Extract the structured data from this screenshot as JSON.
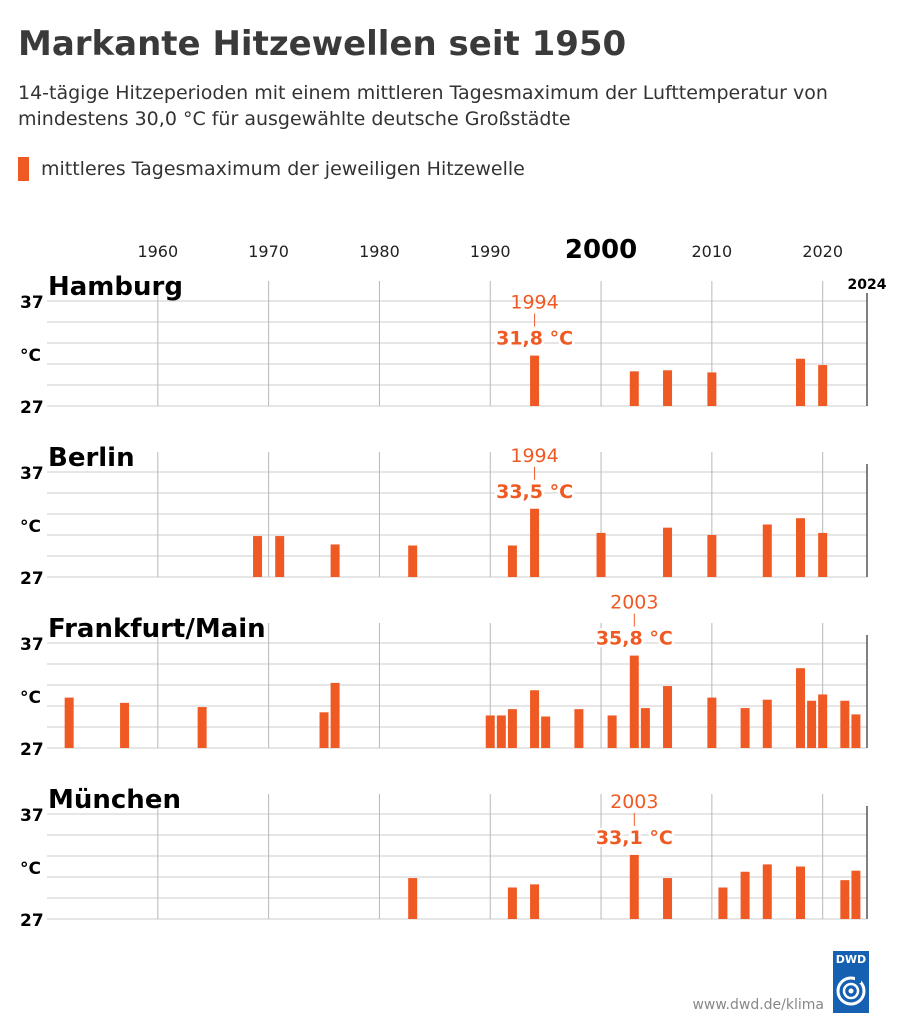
{
  "title": "Markante Hitzewellen seit 1950",
  "subtitle": "14-tägige Hitzeperioden mit einem mittleren Tagesmaximum der Lufttemperatur von mindestens 30,0 °C für ausgewählte deutsche Großstädte",
  "legend_label": "mittleres Tagesmaximum der jeweiligen Hitzewelle",
  "source": "www.dwd.de/klima",
  "logo_text": "DWD",
  "colors": {
    "bar": "#ef5a24",
    "text": "#333333",
    "grid": "#cccccc",
    "logo": "#1560b1"
  },
  "chart_data": {
    "type": "bar",
    "xlim": [
      1950,
      2024
    ],
    "x_ticks": [
      1960,
      1970,
      1980,
      1990,
      2000,
      2010,
      2020
    ],
    "x_tick_labels": [
      "1960",
      "1970",
      "1980",
      "1990",
      "2000",
      "2010",
      "2020"
    ],
    "x_end_label": "2024",
    "ylim": [
      27,
      37
    ],
    "y_labels": {
      "top": "37",
      "middle": "°C",
      "bottom": "27"
    },
    "panels": [
      {
        "city": "Hamburg",
        "years": [
          1994,
          2003,
          2006,
          2010,
          2018,
          2020
        ],
        "values": [
          31.8,
          30.3,
          30.4,
          30.2,
          31.5,
          30.9
        ],
        "highlight": {
          "year": 1994,
          "year_label": "1994",
          "value_label": "31,8 °C"
        }
      },
      {
        "city": "Berlin",
        "years": [
          1969,
          1971,
          1976,
          1983,
          1992,
          1994,
          2000,
          2006,
          2010,
          2015,
          2018,
          2020
        ],
        "values": [
          30.9,
          30.9,
          30.1,
          30.0,
          30.0,
          33.5,
          31.2,
          31.7,
          31.0,
          32.0,
          32.6,
          31.2
        ],
        "highlight": {
          "year": 1994,
          "year_label": "1994",
          "value_label": "33,5 °C"
        }
      },
      {
        "city": "Frankfurt/Main",
        "years": [
          1952,
          1957,
          1964,
          1975,
          1976,
          1990,
          1991,
          1992,
          1994,
          1995,
          1998,
          2001,
          2003,
          2004,
          2006,
          2010,
          2013,
          2015,
          2018,
          2019,
          2020,
          2022,
          2023
        ],
        "values": [
          31.8,
          31.3,
          30.9,
          30.4,
          33.2,
          30.1,
          30.1,
          30.7,
          32.5,
          30.0,
          30.7,
          30.1,
          35.8,
          30.8,
          32.9,
          31.8,
          30.8,
          31.6,
          34.6,
          31.5,
          32.1,
          31.5,
          30.2
        ],
        "highlight": {
          "year": 2003,
          "year_label": "2003",
          "value_label": "35,8 °C"
        }
      },
      {
        "city": "München",
        "years": [
          1983,
          1992,
          1994,
          2003,
          2006,
          2011,
          2013,
          2015,
          2018,
          2022,
          2023
        ],
        "values": [
          30.9,
          30.0,
          30.3,
          33.1,
          30.9,
          30.0,
          31.5,
          32.2,
          32.0,
          30.7,
          31.6
        ],
        "highlight": {
          "year": 2003,
          "year_label": "2003",
          "value_label": "33,1 °C"
        }
      }
    ]
  }
}
